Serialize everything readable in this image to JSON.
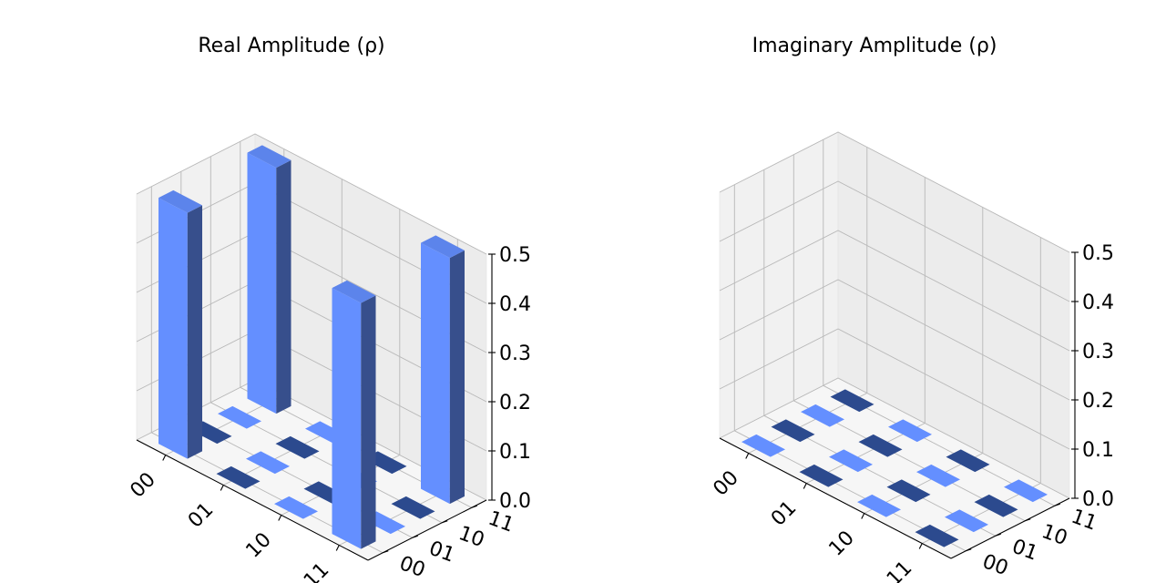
{
  "chart_data": [
    {
      "type": "bar3d",
      "title": "Real Amplitude (ρ)",
      "x_categories": [
        "00",
        "01",
        "10",
        "11"
      ],
      "y_categories": [
        "00",
        "01",
        "10",
        "11"
      ],
      "z_ticks": [
        "0.0",
        "0.1",
        "0.2",
        "0.3",
        "0.4",
        "0.5"
      ],
      "zlim": [
        0,
        0.5
      ],
      "values": [
        [
          0.5,
          0.0,
          0.0,
          0.5
        ],
        [
          0.0,
          0.0,
          0.0,
          0.0
        ],
        [
          0.0,
          0.0,
          0.0,
          0.0
        ],
        [
          0.5,
          0.0,
          0.0,
          0.5
        ]
      ],
      "colors": {
        "positive": "#648fff",
        "negative": "#2c4a8e"
      }
    },
    {
      "type": "bar3d",
      "title": "Imaginary Amplitude (ρ)",
      "x_categories": [
        "00",
        "01",
        "10",
        "11"
      ],
      "y_categories": [
        "00",
        "01",
        "10",
        "11"
      ],
      "z_ticks": [
        "0.0",
        "0.1",
        "0.2",
        "0.3",
        "0.4",
        "0.5"
      ],
      "zlim": [
        0,
        0.5
      ],
      "values": [
        [
          0.0,
          0.0,
          0.0,
          0.0
        ],
        [
          0.0,
          0.0,
          0.0,
          0.0
        ],
        [
          0.0,
          0.0,
          0.0,
          0.0
        ],
        [
          0.0,
          0.0,
          0.0,
          0.0
        ]
      ],
      "colors": {
        "positive": "#648fff",
        "negative": "#2c4a8e"
      }
    }
  ]
}
